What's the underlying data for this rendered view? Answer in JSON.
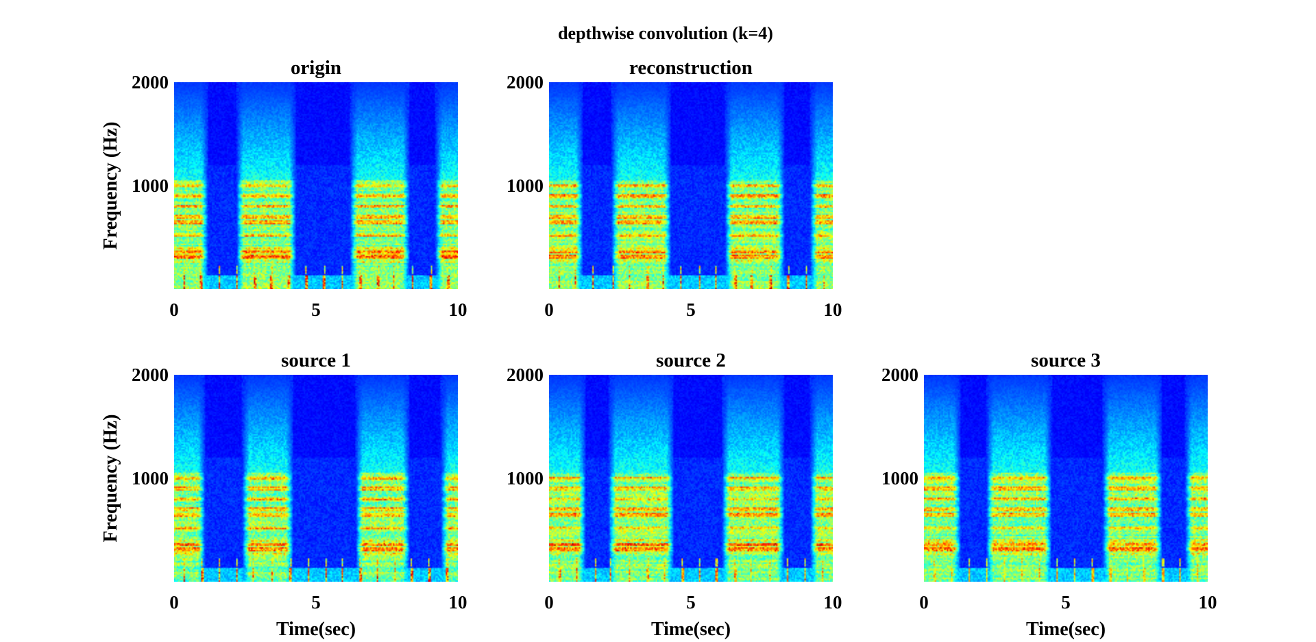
{
  "figure_title": "depthwise convolution (k=4)",
  "colormap": "jet",
  "colors": {
    "background": "#ffffff",
    "text": "#262626",
    "low": "#00008f",
    "high": "#ff0000"
  },
  "chart_data": [
    {
      "type": "heatmap",
      "title": "origin",
      "xlabel": "",
      "ylabel": "Frequency (Hz)",
      "xlim": [
        0,
        10
      ],
      "ylim": [
        0,
        2000
      ],
      "xticks": [
        0,
        5,
        10
      ],
      "yticks": [
        1000,
        2000
      ],
      "bursts_sec": [
        [
          0,
          1.2
        ],
        [
          2.2,
          4.3
        ],
        [
          6.2,
          8.3
        ],
        [
          9.2,
          10
        ]
      ],
      "pulse_strength": 1.0
    },
    {
      "type": "heatmap",
      "title": "reconstruction",
      "xlabel": "",
      "ylabel": "",
      "xlim": [
        0,
        10
      ],
      "ylim": [
        0,
        2000
      ],
      "xticks": [
        0,
        5,
        10
      ],
      "yticks": [
        1000,
        2000
      ],
      "bursts_sec": [
        [
          0,
          1.2
        ],
        [
          2.2,
          4.3
        ],
        [
          6.2,
          8.3
        ],
        [
          9.2,
          10
        ]
      ],
      "pulse_strength": 1.0
    },
    {
      "type": "heatmap",
      "title": "source 1",
      "xlabel": "Time(sec)",
      "ylabel": "Frequency (Hz)",
      "xlim": [
        0,
        10
      ],
      "ylim": [
        0,
        2000
      ],
      "xticks": [
        0,
        5,
        10
      ],
      "yticks": [
        1000,
        2000
      ],
      "bursts_sec": [
        [
          0,
          1.1
        ],
        [
          2.4,
          4.2
        ],
        [
          6.4,
          8.3
        ],
        [
          9.4,
          10
        ]
      ],
      "pulse_strength": 1.0
    },
    {
      "type": "heatmap",
      "title": "source 2",
      "xlabel": "Time(sec)",
      "ylabel": "",
      "xlim": [
        0,
        10
      ],
      "ylim": [
        0,
        2000
      ],
      "xticks": [
        0,
        5,
        10
      ],
      "yticks": [
        1000,
        2000
      ],
      "bursts_sec": [
        [
          0,
          1.3
        ],
        [
          2.1,
          4.4
        ],
        [
          6.1,
          8.3
        ],
        [
          9.2,
          10
        ]
      ],
      "pulse_strength": 0.8
    },
    {
      "type": "heatmap",
      "title": "source 3",
      "xlabel": "Time(sec)",
      "ylabel": "",
      "xlim": [
        0,
        10
      ],
      "ylim": [
        0,
        2000
      ],
      "xticks": [
        0,
        5,
        10
      ],
      "yticks": [
        1000,
        2000
      ],
      "bursts_sec": [
        [
          0,
          1.3
        ],
        [
          2.2,
          4.5
        ],
        [
          6.3,
          8.4
        ],
        [
          9.2,
          10
        ]
      ],
      "pulse_strength": 0.6
    }
  ]
}
